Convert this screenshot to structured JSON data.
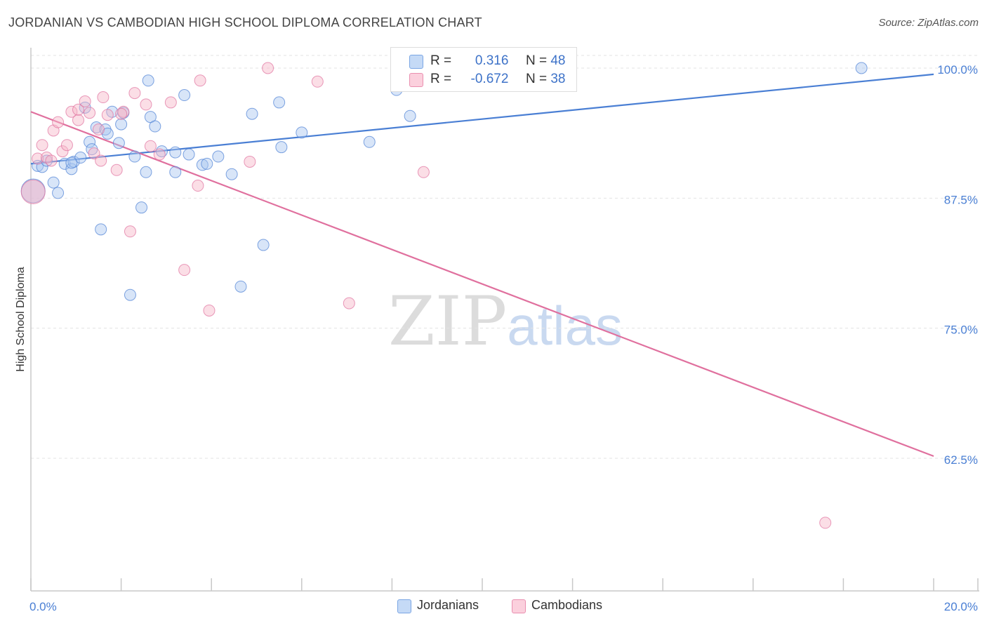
{
  "title": "JORDANIAN VS CAMBODIAN HIGH SCHOOL DIPLOMA CORRELATION CHART",
  "source": "Source: ZipAtlas.com",
  "watermark": {
    "zip": "ZIP",
    "atlas": "atlas"
  },
  "legend_top": {
    "rows": [
      {
        "r_label": "R =",
        "r_value": "0.316",
        "n_label": "N =",
        "n_value": "48",
        "color": "#a9c6ef"
      },
      {
        "r_label": "R =",
        "r_value": "-0.672",
        "n_label": "N =",
        "n_value": "38",
        "color": "#f7b6c8"
      }
    ]
  },
  "legend_bottom": [
    {
      "label": "Jordanians",
      "color": "#a9c6ef"
    },
    {
      "label": "Cambodians",
      "color": "#f7b6c8"
    }
  ],
  "chart_data": {
    "type": "scatter",
    "title": "JORDANIAN VS CAMBODIAN HIGH SCHOOL DIPLOMA CORRELATION CHART",
    "xlabel": "",
    "ylabel": "High School Diploma",
    "xlim": [
      0,
      20
    ],
    "ylim": [
      50,
      100.5
    ],
    "x_tick_labels": [
      "0.0%",
      "20.0%"
    ],
    "y_ticks": [
      62.5,
      75.0,
      87.5,
      100.0
    ],
    "y_tick_labels": [
      "62.5%",
      "75.0%",
      "87.5%",
      "100.0%"
    ],
    "grid": true,
    "series": [
      {
        "name": "Jordanians",
        "color": "#4a7fd4",
        "fill": "#a9c6ef",
        "trend": {
          "x": [
            0,
            20
          ],
          "y": [
            90.8,
            99.4
          ]
        },
        "points": [
          {
            "x": 0.05,
            "y": 88.2,
            "big": true
          },
          {
            "x": 0.15,
            "y": 90.6
          },
          {
            "x": 0.25,
            "y": 90.5
          },
          {
            "x": 0.35,
            "y": 91.1
          },
          {
            "x": 0.5,
            "y": 89.0
          },
          {
            "x": 0.6,
            "y": 88.0
          },
          {
            "x": 0.75,
            "y": 90.8
          },
          {
            "x": 0.9,
            "y": 90.3
          },
          {
            "x": 0.95,
            "y": 91.0
          },
          {
            "x": 1.1,
            "y": 91.4
          },
          {
            "x": 1.2,
            "y": 96.2
          },
          {
            "x": 1.3,
            "y": 92.9
          },
          {
            "x": 1.35,
            "y": 92.2
          },
          {
            "x": 1.45,
            "y": 94.3
          },
          {
            "x": 1.55,
            "y": 84.5
          },
          {
            "x": 1.65,
            "y": 94.1
          },
          {
            "x": 1.7,
            "y": 93.7
          },
          {
            "x": 1.8,
            "y": 95.8
          },
          {
            "x": 1.95,
            "y": 92.8
          },
          {
            "x": 2.0,
            "y": 94.6
          },
          {
            "x": 2.05,
            "y": 95.7
          },
          {
            "x": 2.2,
            "y": 78.2
          },
          {
            "x": 2.3,
            "y": 91.5
          },
          {
            "x": 2.45,
            "y": 86.6
          },
          {
            "x": 2.55,
            "y": 90.0
          },
          {
            "x": 2.6,
            "y": 98.8
          },
          {
            "x": 2.65,
            "y": 95.3
          },
          {
            "x": 2.75,
            "y": 94.4
          },
          {
            "x": 3.2,
            "y": 90.0
          },
          {
            "x": 3.2,
            "y": 91.9
          },
          {
            "x": 3.4,
            "y": 97.4
          },
          {
            "x": 3.5,
            "y": 91.7
          },
          {
            "x": 3.8,
            "y": 90.7
          },
          {
            "x": 3.9,
            "y": 90.8
          },
          {
            "x": 4.15,
            "y": 91.5
          },
          {
            "x": 4.45,
            "y": 89.8
          },
          {
            "x": 4.65,
            "y": 79.0
          },
          {
            "x": 4.9,
            "y": 95.6
          },
          {
            "x": 5.15,
            "y": 83.0
          },
          {
            "x": 5.5,
            "y": 96.7
          },
          {
            "x": 5.55,
            "y": 92.4
          },
          {
            "x": 6.0,
            "y": 93.8
          },
          {
            "x": 7.5,
            "y": 92.9
          },
          {
            "x": 8.4,
            "y": 95.4
          },
          {
            "x": 8.1,
            "y": 97.9
          },
          {
            "x": 18.4,
            "y": 100.0
          },
          {
            "x": 0.9,
            "y": 90.9
          },
          {
            "x": 2.9,
            "y": 92.0
          }
        ]
      },
      {
        "name": "Cambodians",
        "color": "#e0709e",
        "fill": "#f7b6c8",
        "trend": {
          "x": [
            0,
            20
          ],
          "y": [
            95.8,
            62.7
          ]
        },
        "points": [
          {
            "x": 0.05,
            "y": 88.1,
            "big": true
          },
          {
            "x": 0.15,
            "y": 91.3
          },
          {
            "x": 0.25,
            "y": 92.6
          },
          {
            "x": 0.35,
            "y": 91.4
          },
          {
            "x": 0.45,
            "y": 91.1
          },
          {
            "x": 0.5,
            "y": 94.0
          },
          {
            "x": 0.6,
            "y": 94.8
          },
          {
            "x": 0.7,
            "y": 92.0
          },
          {
            "x": 0.8,
            "y": 92.6
          },
          {
            "x": 0.9,
            "y": 95.8
          },
          {
            "x": 1.05,
            "y": 95.0
          },
          {
            "x": 1.05,
            "y": 96.0
          },
          {
            "x": 1.2,
            "y": 96.8
          },
          {
            "x": 1.3,
            "y": 95.7
          },
          {
            "x": 1.4,
            "y": 91.8
          },
          {
            "x": 1.55,
            "y": 91.1
          },
          {
            "x": 1.6,
            "y": 97.2
          },
          {
            "x": 1.7,
            "y": 95.5
          },
          {
            "x": 1.9,
            "y": 90.2
          },
          {
            "x": 2.05,
            "y": 95.8
          },
          {
            "x": 2.2,
            "y": 84.3
          },
          {
            "x": 2.3,
            "y": 97.6
          },
          {
            "x": 2.55,
            "y": 96.5
          },
          {
            "x": 2.65,
            "y": 92.5
          },
          {
            "x": 2.85,
            "y": 91.7
          },
          {
            "x": 3.1,
            "y": 96.7
          },
          {
            "x": 3.4,
            "y": 80.6
          },
          {
            "x": 3.7,
            "y": 88.7
          },
          {
            "x": 3.75,
            "y": 98.8
          },
          {
            "x": 3.95,
            "y": 76.7
          },
          {
            "x": 4.85,
            "y": 91.0
          },
          {
            "x": 5.25,
            "y": 100.0
          },
          {
            "x": 6.35,
            "y": 98.7
          },
          {
            "x": 7.05,
            "y": 77.4
          },
          {
            "x": 8.7,
            "y": 90.0
          },
          {
            "x": 17.6,
            "y": 56.3
          },
          {
            "x": 1.5,
            "y": 94.1
          },
          {
            "x": 2.0,
            "y": 95.6
          }
        ]
      }
    ]
  }
}
